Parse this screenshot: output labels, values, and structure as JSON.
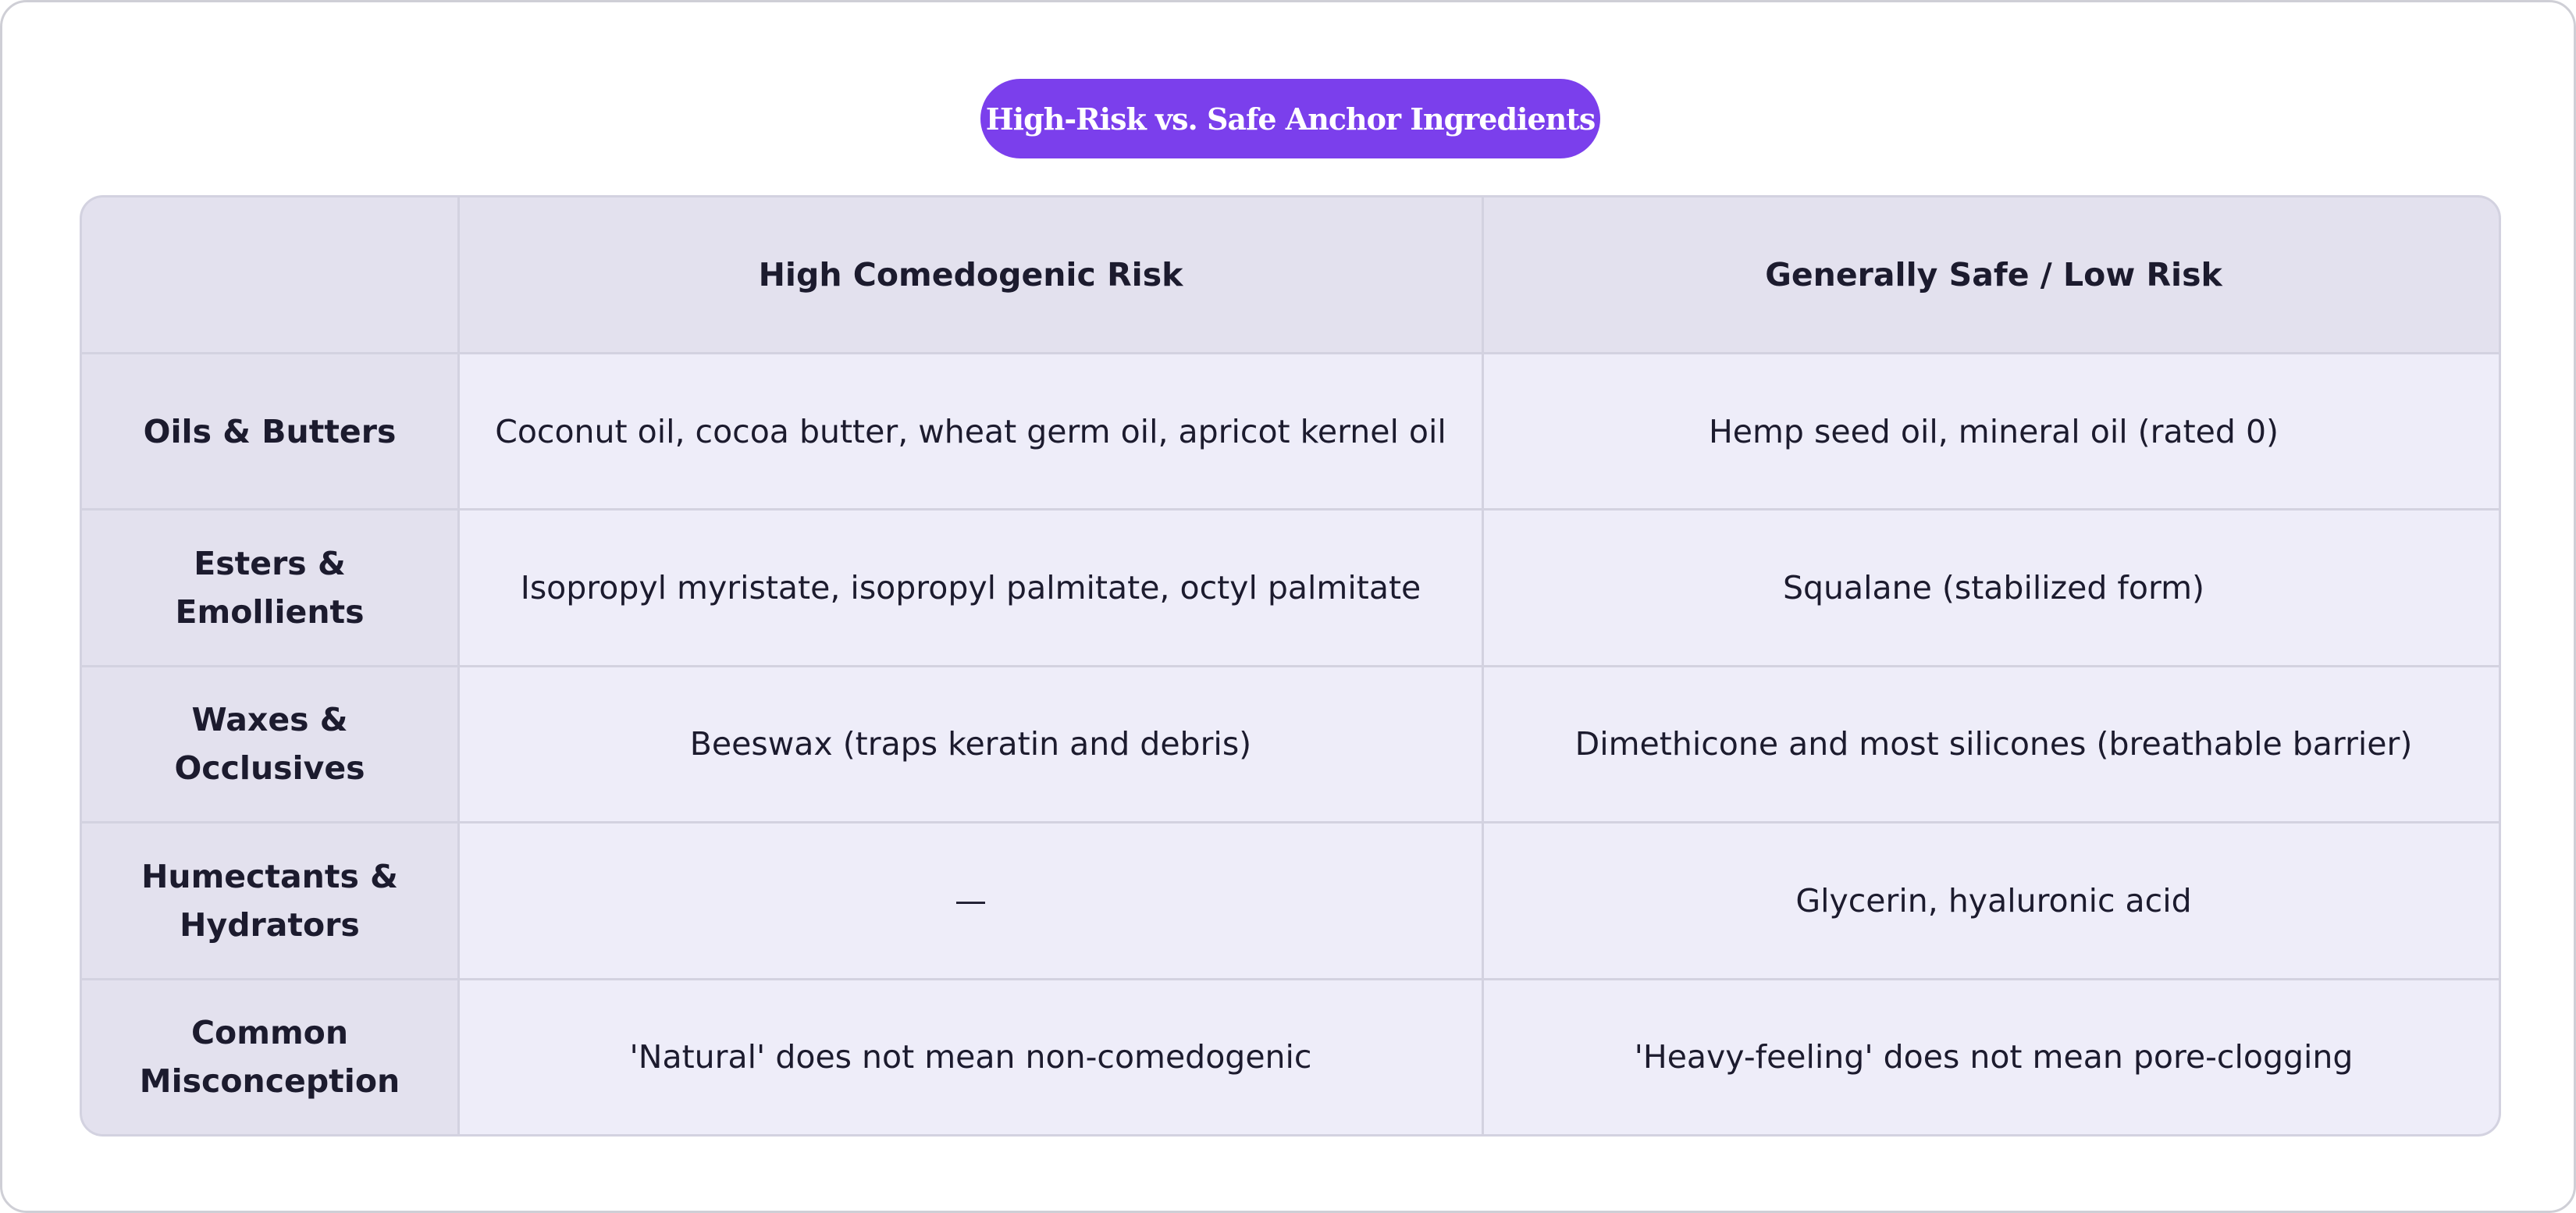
{
  "title": "High-Risk vs. Safe Anchor Ingredients",
  "table": {
    "headers": [
      "",
      "High Comedogenic Risk",
      "Generally Safe / Low Risk"
    ],
    "rows": [
      {
        "category": "Oils & Butters",
        "high_risk": "Coconut oil, cocoa butter, wheat germ oil, apricot kernel oil",
        "safe": "Hemp seed oil, mineral oil (rated 0)"
      },
      {
        "category": "Esters & Emollients",
        "high_risk": "Isopropyl myristate, isopropyl palmitate, octyl palmitate",
        "safe": "Squalane (stabilized form)"
      },
      {
        "category": "Waxes & Occlusives",
        "high_risk": "Beeswax (traps keratin and debris)",
        "safe": "Dimethicone and most silicones (breathable barrier)"
      },
      {
        "category": "Humectants & Hydrators",
        "high_risk": "—",
        "safe": "Glycerin, hyaluronic acid"
      },
      {
        "category": "Common Misconception",
        "high_risk": "'Natural' does not mean non-comedogenic",
        "safe": "'Heavy-feeling' does not mean pore-clogging"
      }
    ]
  },
  "colors": {
    "accent": "#7b3fec",
    "header_bg": "#e3e1ee",
    "cell_bg": "#eeedf9",
    "border": "#d3d2e0",
    "text": "#1c1b2e"
  }
}
